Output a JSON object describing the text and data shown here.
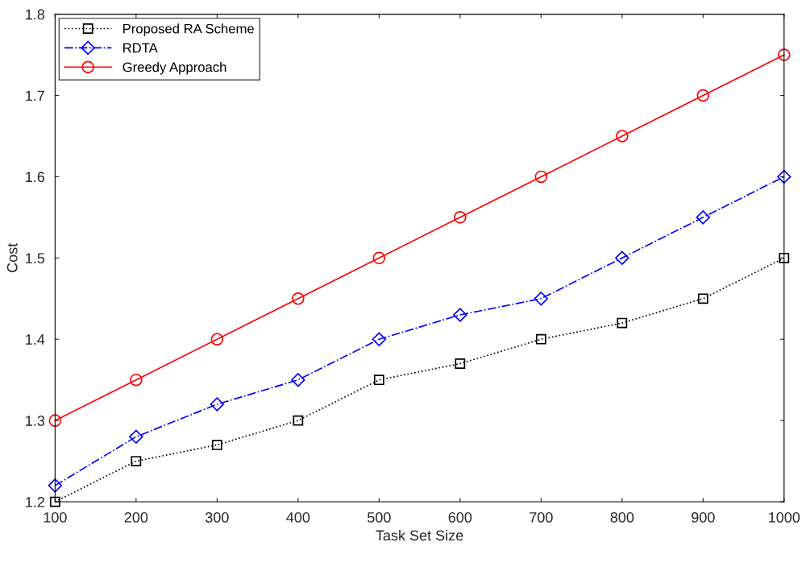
{
  "chart_data": {
    "type": "line",
    "xlabel": "Task Set Size",
    "ylabel": "Cost",
    "x": [
      100,
      200,
      300,
      400,
      500,
      600,
      700,
      800,
      900,
      1000
    ],
    "series": [
      {
        "name": "Proposed RA Scheme",
        "color": "#000000",
        "marker": "square",
        "line_style": "dotted",
        "values": [
          1.2,
          1.25,
          1.27,
          1.3,
          1.35,
          1.37,
          1.4,
          1.42,
          1.45,
          1.5
        ]
      },
      {
        "name": "RDTA",
        "color": "#0000ff",
        "marker": "diamond",
        "line_style": "dashdot",
        "values": [
          1.22,
          1.28,
          1.32,
          1.35,
          1.4,
          1.43,
          1.45,
          1.5,
          1.55,
          1.6
        ]
      },
      {
        "name": "Greedy Approach",
        "color": "#ff0000",
        "marker": "circle",
        "line_style": "solid",
        "values": [
          1.3,
          1.35,
          1.4,
          1.45,
          1.5,
          1.55,
          1.6,
          1.65,
          1.7,
          1.75
        ]
      }
    ],
    "xlim": [
      100,
      1000
    ],
    "xticks": [
      100,
      200,
      300,
      400,
      500,
      600,
      700,
      800,
      900,
      1000
    ],
    "ylim": [
      1.2,
      1.8
    ],
    "yticks": [
      {
        "value": 1.2,
        "label": "1.2"
      },
      {
        "value": 1.3,
        "label": "1.3"
      },
      {
        "value": 1.4,
        "label": "1.4"
      },
      {
        "value": 1.5,
        "label": "1.5"
      },
      {
        "value": 1.6,
        "label": "1.6"
      },
      {
        "value": 1.7,
        "label": "1.7"
      },
      {
        "value": 1.8,
        "label": "1.8"
      }
    ],
    "grid": false,
    "legend": "top left"
  }
}
